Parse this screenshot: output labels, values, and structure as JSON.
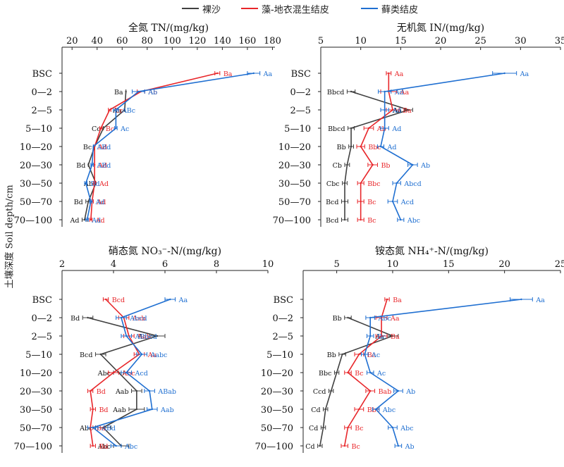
{
  "legend": {
    "series": [
      {
        "name": "裸沙",
        "color": "#404040"
      },
      {
        "name": "藻-地衣混生结皮",
        "color": "#e8262a"
      },
      {
        "name": "藓类结皮",
        "color": "#1f6fd1"
      }
    ]
  },
  "y_axis_title": "土壤深度 Soil depth/cm",
  "chart_data": [
    {
      "type": "line",
      "title": "全氮 TN/(mg/kg)",
      "xlim": [
        12,
        182
      ],
      "xticks": [
        20,
        40,
        60,
        80,
        100,
        120,
        140,
        160,
        180
      ],
      "categories": [
        "BSC",
        "0—2",
        "2—5",
        "5—10",
        "10—20",
        "20—30",
        "30—50",
        "50—70",
        "70—100"
      ],
      "series": [
        {
          "values": [
            null,
            63,
            62,
            45,
            38,
            33,
            39,
            33,
            30
          ],
          "errors": [
            null,
            0,
            0,
            0,
            0,
            0,
            0,
            2,
            2
          ],
          "letters": [
            null,
            "Ba",
            "Aa",
            "Cc",
            "Bc",
            "Bd",
            "Ab",
            "Bd",
            "Ad"
          ]
        },
        {
          "values": [
            136,
            75,
            50,
            43,
            38,
            38,
            38,
            36,
            35
          ],
          "errors": [
            2,
            3,
            1,
            1,
            0,
            0,
            1,
            1,
            1
          ],
          "letters": [
            "Ba",
            "Ab",
            "Bc",
            "Bc",
            "Ad",
            "Ad",
            "Ad",
            "Ad",
            "Ad"
          ]
        },
        {
          "values": [
            165,
            73,
            55,
            55,
            37,
            36,
            31,
            35,
            32
          ],
          "errors": [
            5,
            5,
            2,
            1,
            0,
            1,
            1,
            1,
            1
          ],
          "letters": [
            "Aa",
            "Ab",
            "ABc",
            "Ac",
            "ABd",
            "ABd",
            "Bd",
            "Ad",
            "Ad"
          ]
        }
      ]
    },
    {
      "type": "line",
      "title": "无机氮 IN/(mg/kg)",
      "xlim": [
        5,
        35
      ],
      "xticks": [
        5,
        10,
        15,
        20,
        25,
        30,
        35
      ],
      "categories": [
        "BSC",
        "0—2",
        "2—5",
        "5—10",
        "10—20",
        "20—30",
        "30—50",
        "50—70",
        "70—100"
      ],
      "series": [
        {
          "values": [
            null,
            8.8,
            16.0,
            8.8,
            8.8,
            8.3,
            8.0,
            8.0,
            8.0
          ],
          "errors": [
            null,
            0.5,
            0.5,
            0.4,
            0.3,
            0.3,
            0.3,
            0.4,
            0.4
          ],
          "letters": [
            null,
            "Bbcd",
            "Aa",
            "Bbcd",
            "Bb",
            "Cb",
            "Cbc",
            "Bcd",
            "Bcd"
          ]
        },
        {
          "values": [
            13.5,
            13.5,
            14.0,
            11.0,
            10.0,
            11.5,
            10.0,
            10.0,
            10.0
          ],
          "errors": [
            0.3,
            1.0,
            0.8,
            0.6,
            0.5,
            0.6,
            0.4,
            0.4,
            0.4
          ],
          "letters": [
            "Aa",
            "Aa",
            "Ba",
            "Ab",
            "Bbc",
            "Bb",
            "Bbc",
            "Bc",
            "Bc"
          ]
        },
        {
          "values": [
            28.0,
            13.0,
            13.0,
            13.0,
            12.5,
            16.5,
            14.5,
            14.0,
            15.0
          ],
          "errors": [
            1.5,
            0.8,
            0.5,
            0.5,
            0.4,
            0.6,
            0.5,
            0.6,
            0.4
          ],
          "letters": [
            "Aa",
            "Ad",
            "Ad",
            "Ad",
            "Ad",
            "Ab",
            "Abcd",
            "Acd",
            "Abc"
          ]
        }
      ]
    },
    {
      "type": "line",
      "title": "硝态氮 NO₃⁻-N/(mg/kg)",
      "xlim": [
        2,
        10
      ],
      "xticks": [
        2,
        4,
        6,
        8,
        10
      ],
      "categories": [
        "BSC",
        "0—2",
        "2—5",
        "5—10",
        "10—20",
        "20—30",
        "30—50",
        "50—70",
        "70—100"
      ],
      "series": [
        {
          "values": [
            null,
            3.0,
            5.7,
            3.5,
            4.2,
            4.9,
            4.9,
            3.6,
            4.3
          ],
          "errors": [
            null,
            0.2,
            0.3,
            0.2,
            0.2,
            0.2,
            0.3,
            0.3,
            0.3
          ],
          "letters": [
            null,
            "Bd",
            "Aa",
            "Bcd",
            "Abc",
            "Aab",
            "Aab",
            "Abc",
            "Abc"
          ]
        },
        {
          "values": [
            3.7,
            4.4,
            4.6,
            5.0,
            4.0,
            3.1,
            3.2,
            3.1,
            3.2
          ],
          "errors": [
            0.1,
            0.2,
            0.2,
            0.2,
            0.2,
            0.1,
            0.1,
            0.1,
            0.1
          ],
          "letters": [
            "Bcd",
            "Aab",
            "Bab",
            "Aa",
            "Abc",
            "Bd",
            "Bd",
            "Bd",
            "Bd"
          ]
        },
        {
          "values": [
            6.2,
            4.3,
            4.5,
            5.1,
            4.5,
            5.4,
            5.5,
            3.2,
            4.1
          ],
          "errors": [
            0.2,
            0.2,
            0.2,
            0.2,
            0.2,
            0.2,
            0.2,
            0.2,
            0.2
          ],
          "letters": [
            "Aa",
            "Abcd",
            "ABbcd",
            "Aabc",
            "Acd",
            "ABab",
            "Aab",
            "ABd",
            "Abc"
          ]
        }
      ]
    },
    {
      "type": "line",
      "title": "铵态氮 NH₄⁺-N/(mg/kg)",
      "xlim": [
        2,
        25
      ],
      "xticks": [
        5,
        10,
        15,
        20,
        25
      ],
      "categories": [
        "BSC",
        "0—2",
        "2—5",
        "5—10",
        "10—20",
        "20—30",
        "30—50",
        "50—70",
        "70—100"
      ],
      "series": [
        {
          "values": [
            null,
            6.0,
            10.0,
            5.5,
            5.0,
            4.5,
            4.0,
            3.8,
            3.5
          ],
          "errors": [
            null,
            0.3,
            0.5,
            0.3,
            0.2,
            0.2,
            0.2,
            0.2,
            0.2
          ],
          "letters": [
            null,
            "Bb",
            "Aa",
            "Bb",
            "Bbc",
            "Ccd",
            "Cd",
            "Cd",
            "Cd"
          ]
        },
        {
          "values": [
            9.5,
            9.0,
            9.0,
            7.0,
            6.0,
            8.0,
            7.0,
            6.0,
            5.7
          ],
          "errors": [
            0.2,
            0.5,
            0.5,
            0.4,
            0.3,
            0.4,
            0.4,
            0.3,
            0.3
          ],
          "letters": [
            "Ba",
            "Aa",
            "Ba",
            "Bc",
            "Bc",
            "Bab",
            "Bbc",
            "Bc",
            "Bc"
          ]
        },
        {
          "values": [
            21.5,
            8.0,
            8.0,
            7.5,
            8.0,
            10.5,
            8.5,
            10.0,
            10.5
          ],
          "errors": [
            1.0,
            0.4,
            0.3,
            0.3,
            0.3,
            0.4,
            0.3,
            0.4,
            0.3
          ],
          "letters": [
            "Aa",
            "Abc",
            "Bc",
            "Ac",
            "Ac",
            "Ab",
            "Abc",
            "Abc",
            "Ab"
          ]
        }
      ]
    }
  ]
}
